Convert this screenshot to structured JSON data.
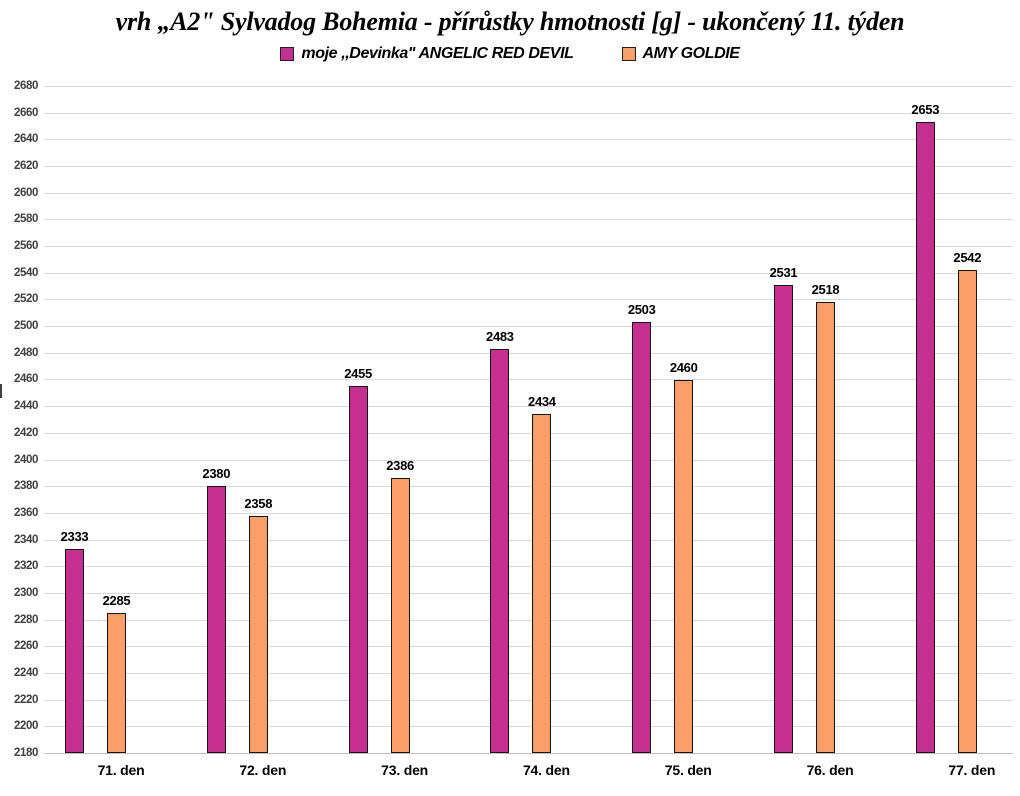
{
  "title": "vrh „A2\" Sylvadog Bohemia - přírůstky hmotnosti [g] - ukončený 11. týden",
  "chart_data": {
    "type": "bar",
    "categories": [
      "71. den",
      "72. den",
      "73. den",
      "74. den",
      "75. den",
      "76. den",
      "77. den"
    ],
    "series": [
      {
        "name": "moje ,,Devinka\" ANGELIC RED DEVIL",
        "color": "#c42f90",
        "values": [
          2333,
          2380,
          2455,
          2483,
          2503,
          2531,
          2653
        ]
      },
      {
        "name": "AMY GOLDIE",
        "color": "#fc9e68",
        "values": [
          2285,
          2358,
          2386,
          2434,
          2460,
          2518,
          2542
        ]
      }
    ],
    "ylabel": "",
    "xlabel": "",
    "ylim": [
      2180,
      2680
    ],
    "ytick_step": 20,
    "grid": "horizontal",
    "legend_position": "top",
    "data_labels": true,
    "bar_border_color": "#141414",
    "gridline_color": "#d9d9d9"
  }
}
